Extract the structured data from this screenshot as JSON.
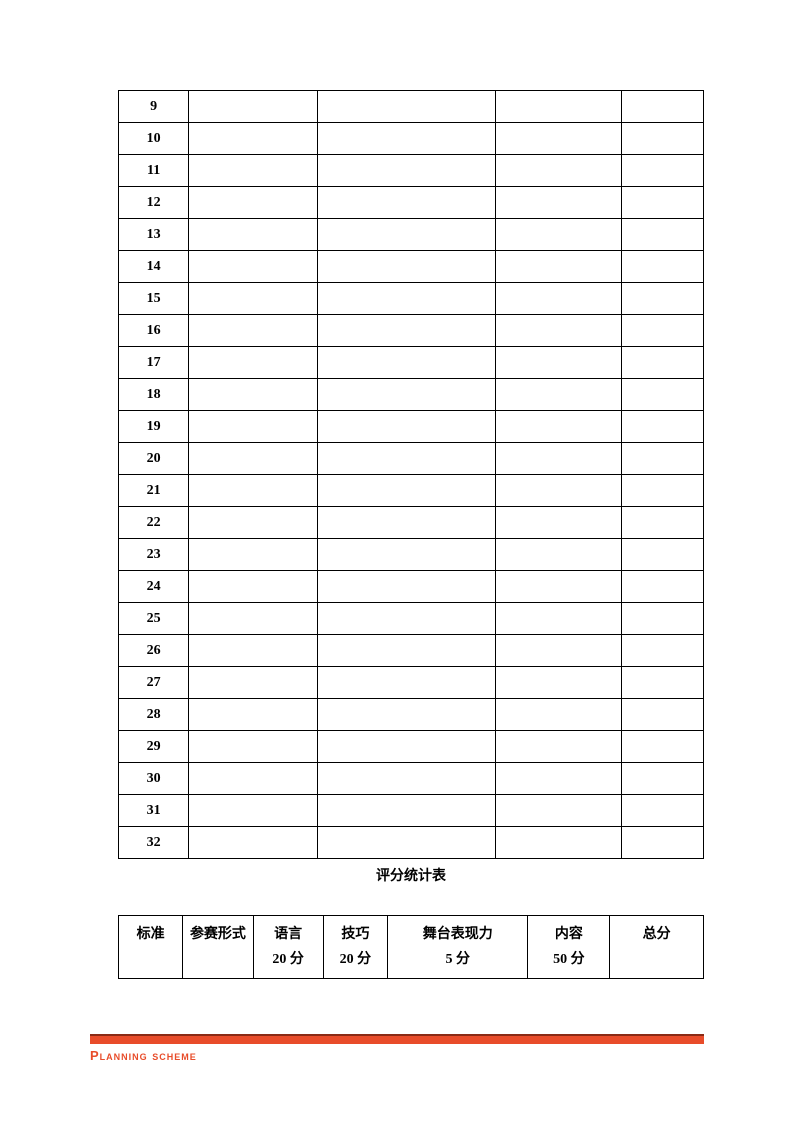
{
  "table1": {
    "rows": [
      "9",
      "10",
      "11",
      "12",
      "13",
      "14",
      "15",
      "16",
      "17",
      "18",
      "19",
      "20",
      "21",
      "22",
      "23",
      "24",
      "25",
      "26",
      "27",
      "28",
      "29",
      "30",
      "31",
      "32"
    ],
    "col_widths": [
      "12%",
      "22%",
      "30.5%",
      "21.5%",
      "14%"
    ]
  },
  "title": "评分统计表",
  "table2": {
    "headers": [
      {
        "l1": "标准",
        "l2": ""
      },
      {
        "l1": "参赛形式",
        "l2": ""
      },
      {
        "l1": "语言",
        "l2": "20 分"
      },
      {
        "l1": "技巧",
        "l2": "20 分"
      },
      {
        "l1": "舞台表现力",
        "l2": "5 分"
      },
      {
        "l1": "内容",
        "l2": "50 分"
      },
      {
        "l1": "总分",
        "l2": ""
      }
    ],
    "col_widths": [
      "11%",
      "12%",
      "12%",
      "11%",
      "24%",
      "14%",
      "16%"
    ]
  },
  "footer": {
    "text": "Planning scheme",
    "bar_color": "#e84c2a",
    "bar_border": "#8a2a15",
    "text_color": "#e84c2a"
  },
  "colors": {
    "background": "#ffffff",
    "border": "#000000"
  }
}
